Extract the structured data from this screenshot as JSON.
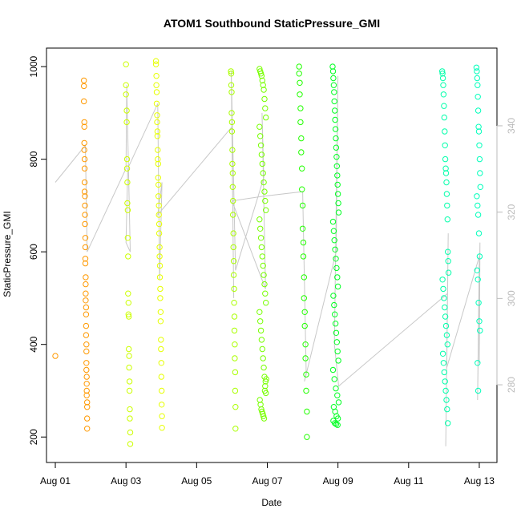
{
  "chart_data": {
    "type": "scatter",
    "title": "ATOM1 Southbound StaticPressure_GMI",
    "xlabel": "Date",
    "ylabel": "StaticPressure_GMI",
    "x_ticks": [
      "Aug 01",
      "Aug 03",
      "Aug 05",
      "Aug 07",
      "Aug 09",
      "Aug 11",
      "Aug 13"
    ],
    "x_tick_days": [
      1,
      3,
      5,
      7,
      9,
      11,
      13
    ],
    "xlim_days": [
      0.75,
      13.5
    ],
    "ylim": [
      145,
      1040
    ],
    "y_ticks": [
      200,
      400,
      600,
      800,
      1000
    ],
    "y2_ticks": [
      280,
      300,
      320,
      340
    ],
    "y2lim": [
      262,
      358
    ],
    "grid": false,
    "legend": "none",
    "line_color": "#c8c8c8",
    "series": [
      {
        "color": "#ff9900",
        "x": [
          1.0,
          1.81,
          1.81,
          1.81,
          1.82,
          1.82,
          1.82,
          1.82,
          1.83,
          1.83,
          1.83,
          1.83,
          1.84,
          1.84,
          1.84,
          1.84,
          1.85,
          1.85,
          1.85,
          1.85,
          1.86,
          1.86,
          1.86,
          1.86,
          1.87,
          1.87,
          1.87,
          1.87,
          1.88,
          1.88,
          1.88,
          1.88,
          1.89,
          1.89,
          1.89,
          1.89,
          1.9,
          1.9,
          1.9,
          1.9
        ],
        "y": [
          375,
          970,
          958,
          925,
          880,
          870,
          835,
          820,
          800,
          780,
          750,
          730,
          720,
          700,
          680,
          660,
          630,
          610,
          585,
          575,
          545,
          530,
          510,
          495,
          480,
          465,
          440,
          420,
          400,
          385,
          360,
          345,
          330,
          315,
          300,
          290,
          275,
          265,
          240,
          218
        ]
      },
      {
        "color": "#ccff00",
        "x": [
          3.0,
          3.0,
          3.0,
          3.02,
          3.02,
          3.03,
          3.03,
          3.04,
          3.04,
          3.05,
          3.05,
          3.06,
          3.06,
          3.07,
          3.07,
          3.08,
          3.08,
          3.09,
          3.09,
          3.1,
          3.1,
          3.11,
          3.11,
          3.12,
          3.12
        ],
        "y": [
          1005,
          960,
          940,
          905,
          880,
          800,
          780,
          750,
          705,
          690,
          630,
          590,
          510,
          490,
          465,
          460,
          390,
          375,
          350,
          320,
          300,
          260,
          240,
          210,
          185
        ]
      },
      {
        "color": "#e6ff00",
        "x": [
          3.85,
          3.85,
          3.86,
          3.86,
          3.87,
          3.87,
          3.88,
          3.88,
          3.89,
          3.89,
          3.9,
          3.9,
          3.91,
          3.91,
          3.92,
          3.92,
          3.93,
          3.93,
          3.94,
          3.94,
          3.95,
          3.95,
          3.96,
          3.96,
          3.97,
          3.97,
          3.98,
          3.98,
          3.99,
          3.99,
          4.0,
          4.0,
          4.01,
          4.01,
          4.02,
          4.02
        ],
        "y": [
          1012,
          1005,
          980,
          960,
          945,
          920,
          895,
          880,
          860,
          850,
          820,
          800,
          790,
          760,
          745,
          720,
          700,
          680,
          660,
          640,
          610,
          590,
          570,
          545,
          520,
          500,
          470,
          450,
          410,
          390,
          360,
          330,
          300,
          270,
          245,
          220
        ]
      },
      {
        "color": "#aaff00",
        "x": [
          5.97,
          5.98,
          5.98,
          5.99,
          5.99,
          6.0,
          6.0,
          6.01,
          6.01,
          6.02,
          6.02,
          6.03,
          6.03,
          6.04,
          6.04,
          6.05,
          6.05,
          6.06,
          6.06,
          6.07,
          6.07,
          6.08,
          6.08,
          6.09,
          6.09,
          6.1,
          6.1
        ],
        "y": [
          990,
          985,
          960,
          945,
          900,
          880,
          860,
          820,
          790,
          770,
          740,
          710,
          680,
          640,
          610,
          580,
          550,
          520,
          490,
          460,
          430,
          400,
          370,
          340,
          300,
          265,
          218
        ]
      },
      {
        "color": "#77ff00",
        "x": [
          6.78,
          6.8,
          6.82,
          6.84,
          6.86,
          6.88,
          6.9,
          6.92,
          6.94,
          6.96,
          6.78,
          6.8,
          6.82,
          6.84,
          6.86,
          6.88,
          6.9,
          6.92,
          6.94,
          6.96,
          6.78,
          6.8,
          6.82,
          6.84,
          6.86,
          6.88,
          6.9,
          6.92,
          6.94,
          6.96,
          6.78,
          6.8,
          6.82,
          6.84,
          6.86,
          6.88,
          6.9,
          6.92,
          6.94,
          6.96,
          6.79,
          6.81,
          6.83,
          6.85,
          6.87,
          6.89,
          6.91,
          6.93,
          6.95,
          6.97
        ],
        "y": [
          995,
          990,
          985,
          980,
          970,
          960,
          950,
          930,
          910,
          890,
          870,
          850,
          830,
          810,
          790,
          770,
          750,
          730,
          710,
          690,
          670,
          650,
          630,
          610,
          590,
          570,
          550,
          530,
          510,
          490,
          470,
          450,
          430,
          410,
          390,
          370,
          350,
          330,
          310,
          295,
          280,
          270,
          260,
          255,
          250,
          245,
          240,
          300,
          320,
          325
        ]
      },
      {
        "color": "#22ff00",
        "x": [
          7.9,
          7.9,
          7.92,
          7.92,
          7.94,
          7.94,
          7.96,
          7.96,
          7.98,
          7.98,
          8.0,
          8.0,
          8.02,
          8.02,
          8.04,
          8.04,
          8.06,
          8.06,
          8.08,
          8.08,
          8.1,
          8.1,
          8.12,
          8.12
        ],
        "y": [
          1000,
          985,
          965,
          940,
          910,
          880,
          845,
          815,
          780,
          735,
          700,
          650,
          620,
          590,
          545,
          500,
          470,
          440,
          400,
          370,
          335,
          300,
          255,
          200
        ]
      },
      {
        "color": "#00ff22",
        "x": [
          8.85,
          8.86,
          8.87,
          8.88,
          8.89,
          8.9,
          8.91,
          8.92,
          8.93,
          8.94,
          8.95,
          8.96,
          8.97,
          8.98,
          8.99,
          9.0,
          9.01,
          9.02,
          8.86,
          8.88,
          8.9,
          8.92,
          8.94,
          8.96,
          8.98,
          9.0,
          8.87,
          8.89,
          8.91,
          8.93,
          8.95,
          8.97,
          8.99,
          9.01,
          8.86,
          8.9,
          8.94,
          8.98,
          9.02,
          8.88,
          8.92,
          8.96,
          9.0,
          8.87,
          8.91,
          8.95,
          8.99
        ],
        "y": [
          1000,
          990,
          975,
          960,
          945,
          925,
          905,
          885,
          865,
          845,
          825,
          805,
          785,
          765,
          745,
          725,
          705,
          685,
          665,
          645,
          625,
          605,
          585,
          565,
          545,
          525,
          505,
          485,
          465,
          445,
          425,
          405,
          385,
          365,
          345,
          325,
          305,
          290,
          275,
          265,
          255,
          245,
          240,
          235,
          230,
          228,
          226
        ]
      },
      {
        "color": "#00ffaa",
        "x": [
          11.95,
          11.96,
          11.97,
          11.98,
          11.99,
          12.0,
          12.01,
          12.02,
          12.03,
          12.04,
          12.05,
          12.06,
          12.07,
          12.08,
          12.09,
          12.1,
          12.11,
          12.12,
          12.13,
          11.96,
          11.98,
          12.0,
          12.02,
          12.04,
          12.06,
          12.08,
          12.1,
          11.97,
          11.99,
          12.01,
          12.03,
          12.05,
          12.07,
          12.09,
          12.11
        ],
        "y": [
          990,
          985,
          975,
          960,
          940,
          915,
          890,
          860,
          830,
          800,
          780,
          770,
          750,
          725,
          700,
          670,
          600,
          580,
          555,
          540,
          520,
          500,
          480,
          460,
          440,
          420,
          400,
          380,
          360,
          340,
          320,
          300,
          280,
          260,
          230
        ]
      },
      {
        "color": "#00ffbb",
        "x": [
          12.92,
          12.93,
          12.94,
          12.95,
          12.96,
          12.97,
          12.98,
          12.99,
          13.0,
          13.01,
          13.02,
          13.03,
          12.93,
          12.95,
          12.97,
          12.99,
          13.01,
          12.94,
          12.96,
          12.98,
          13.0,
          13.02,
          12.95,
          12.97
        ],
        "y": [
          998,
          990,
          975,
          960,
          935,
          905,
          870,
          860,
          830,
          800,
          770,
          740,
          720,
          700,
          680,
          640,
          590,
          560,
          540,
          490,
          450,
          430,
          360,
          300
        ]
      }
    ],
    "trace_days": [
      1.0,
      1.85,
      1.9,
      3.0,
      3.02,
      3.12,
      3.0,
      3.05,
      3.9,
      3.95,
      4.02,
      3.9,
      6.0,
      6.05,
      5.98,
      6.1,
      6.9,
      6.85,
      6.95,
      6.0,
      6.9,
      8.0,
      8.1,
      8.05,
      8.95,
      9.0,
      8.9,
      9.02,
      12.1,
      12.05,
      12.12,
      12.08,
      13.0,
      12.95,
      13.02,
      13.0
    ],
    "trace_y": [
      750,
      830,
      600,
      780,
      960,
      600,
      620,
      780,
      920,
      540,
      750,
      680,
      870,
      500,
      990,
      560,
      760,
      900,
      520,
      710,
      720,
      730,
      340,
      320,
      600,
      980,
      400,
      310,
      510,
      180,
      640,
      350,
      590,
      280,
      620,
      360
    ]
  }
}
